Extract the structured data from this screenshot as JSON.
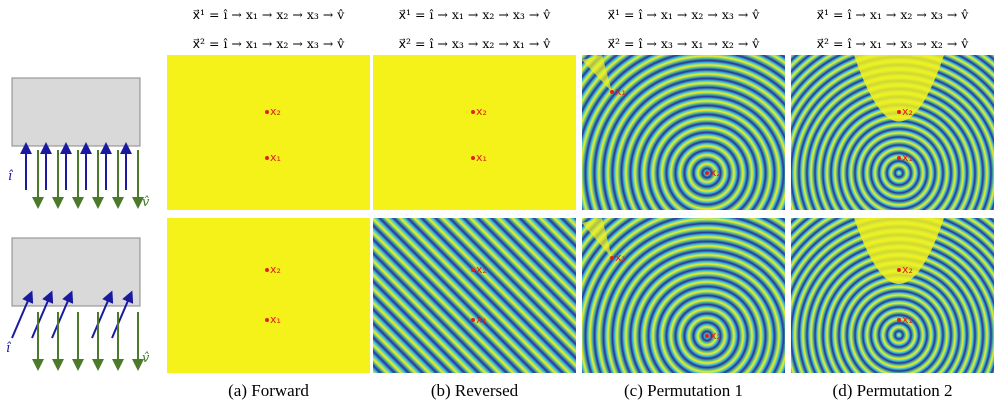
{
  "columns": [
    {
      "path_1": "x⃗¹ = î → x₁ → x₂ → x₃ → v̂",
      "path_2": "x⃗² = î → x₁ → x₂ → x₃ → v̂",
      "caption": "(a) Forward"
    },
    {
      "path_1": "x⃗¹ = î → x₁ → x₂ → x₃ → v̂",
      "path_2": "x⃗² = î → x₃ → x₂ → x₁ → v̂",
      "caption": "(b) Reversed"
    },
    {
      "path_1": "x⃗¹ = î → x₁ → x₂ → x₃ → v̂",
      "path_2": "x⃗² = î → x₃ → x₁ → x₂ → v̂",
      "caption": "(c) Permutation 1"
    },
    {
      "path_1": "x⃗¹ = î → x₁ → x₂ → x₃ → v̂",
      "path_2": "x⃗² = î → x₁ → x₃ → x₂ → v̂",
      "caption": "(d) Permutation 2"
    }
  ],
  "points": {
    "x1": "x₁",
    "x2": "x₂"
  },
  "diagram": {
    "incident": "î",
    "outgoing": "v̂"
  }
}
